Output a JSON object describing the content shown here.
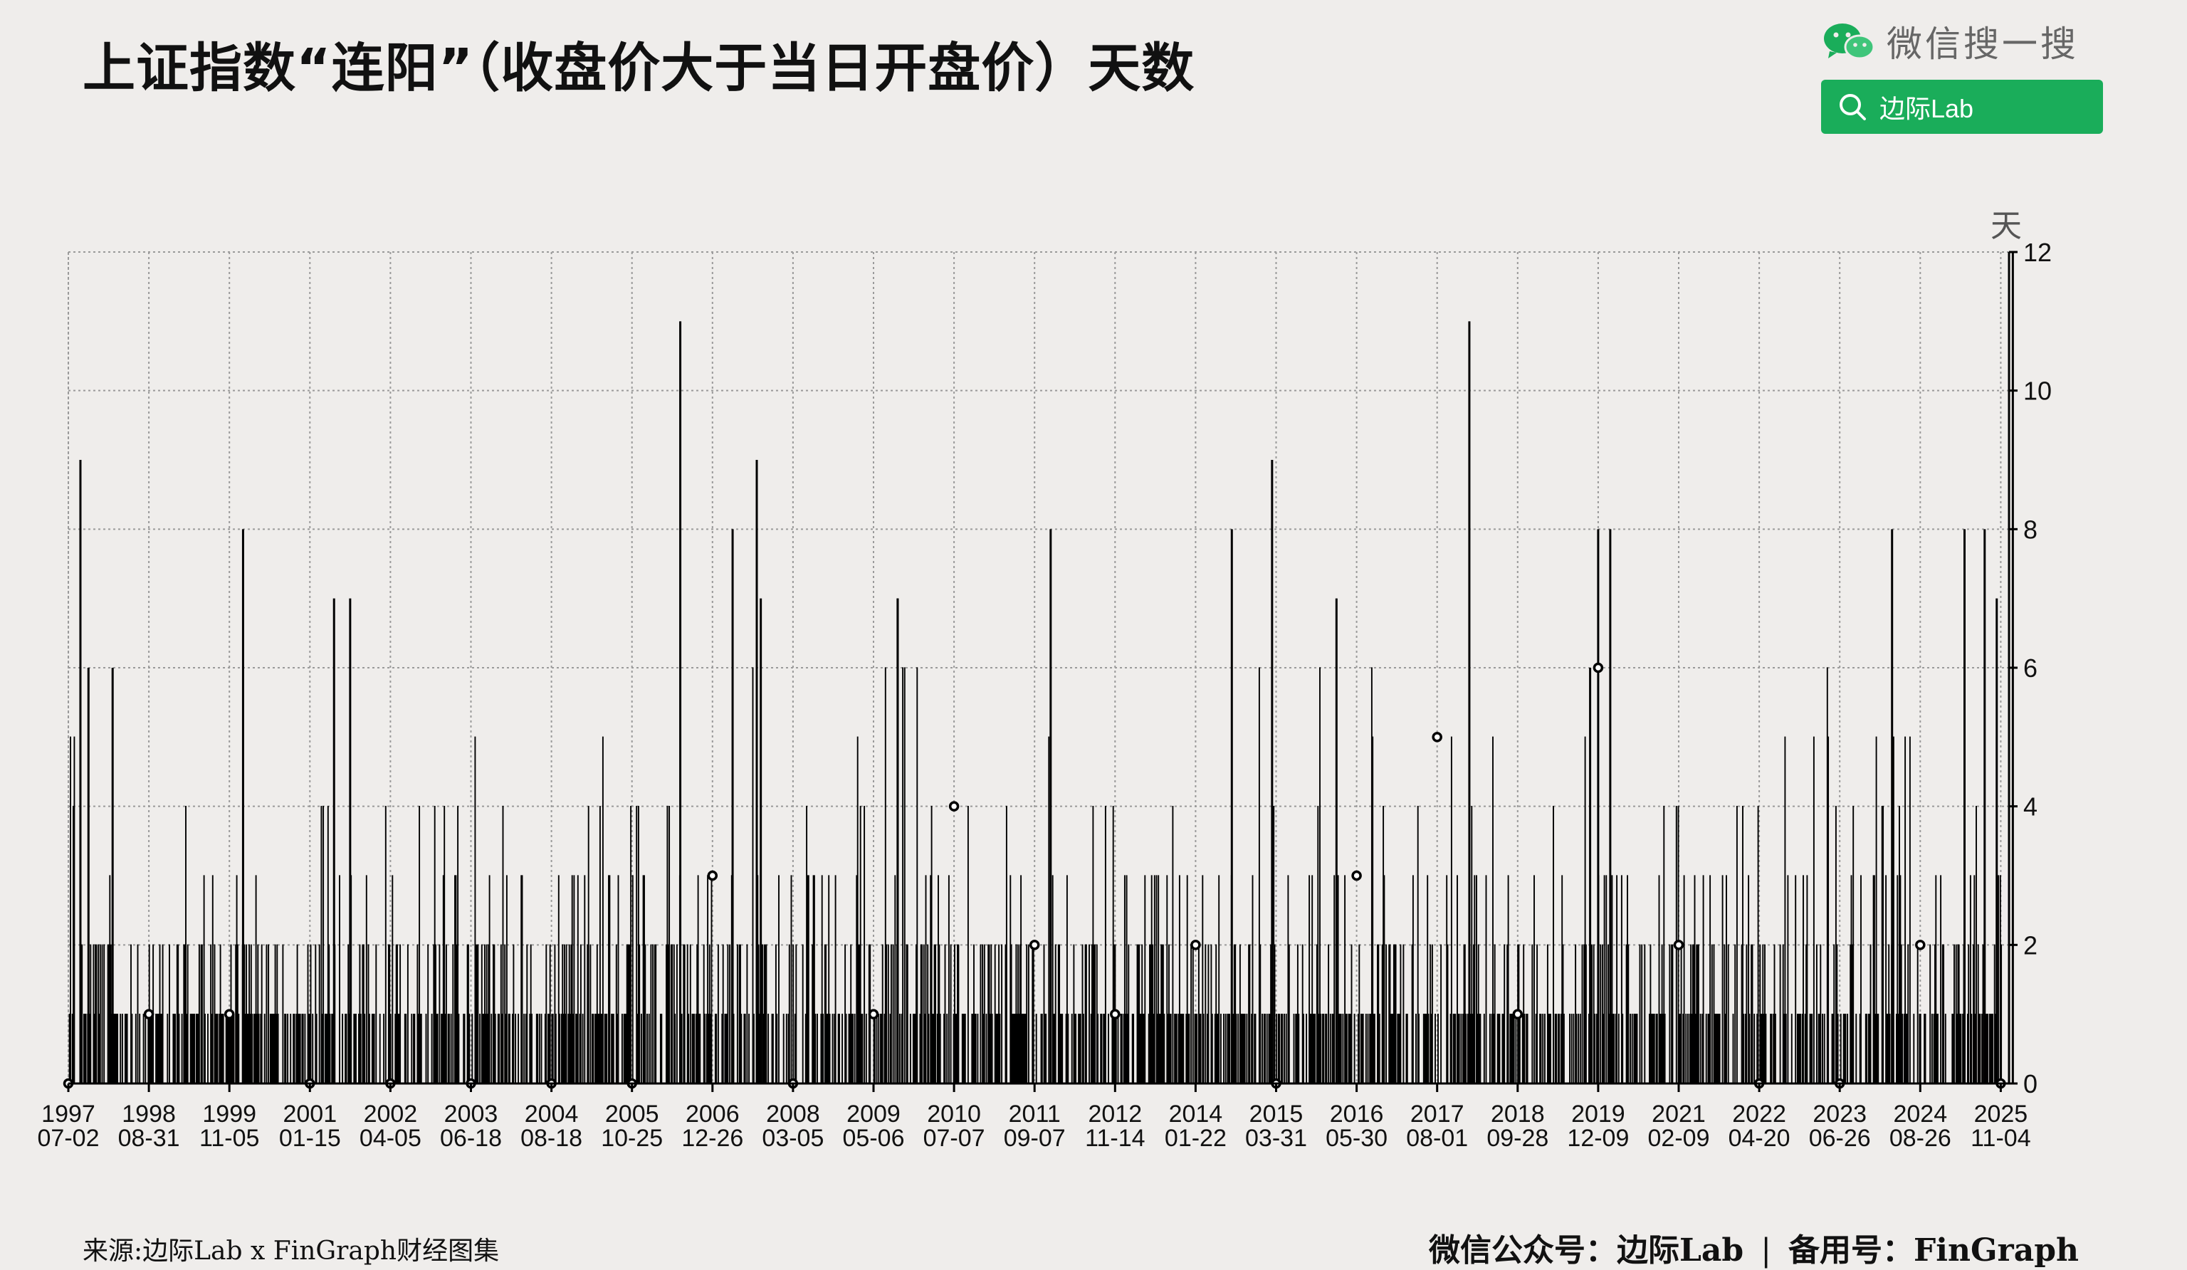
{
  "title": "上证指数“连阳”（收盘价大于当日开盘价）天数",
  "wechat": {
    "label": "微信搜一搜",
    "search_text": "边际Lab",
    "logo_icon": "wechat-logo-icon",
    "search_icon": "magnifier-icon",
    "accent": "#1aad5a"
  },
  "footer": {
    "source": "来源:边际Lab x FinGraph财经图集",
    "account_prefix": "微信公众号：",
    "account": "边际Lab",
    "separator": "|",
    "backup_prefix": "备用号：",
    "backup": "FinGraph"
  },
  "chart_data": {
    "type": "line",
    "ylabel": "天",
    "ylim": [
      0,
      12
    ],
    "y_ticks": [
      0,
      2,
      4,
      6,
      8,
      10,
      12
    ],
    "y_axis_side": "right",
    "grid": true,
    "x_tick_labels": [
      [
        "1997",
        "07-02"
      ],
      [
        "1998",
        "08-31"
      ],
      [
        "1999",
        "11-05"
      ],
      [
        "2001",
        "01-15"
      ],
      [
        "2002",
        "04-05"
      ],
      [
        "2003",
        "06-18"
      ],
      [
        "2004",
        "08-18"
      ],
      [
        "2005",
        "10-25"
      ],
      [
        "2006",
        "12-26"
      ],
      [
        "2008",
        "03-05"
      ],
      [
        "2009",
        "05-06"
      ],
      [
        "2010",
        "07-07"
      ],
      [
        "2011",
        "09-07"
      ],
      [
        "2012",
        "11-14"
      ],
      [
        "2014",
        "01-22"
      ],
      [
        "2015",
        "03-31"
      ],
      [
        "2016",
        "05-30"
      ],
      [
        "2017",
        "08-01"
      ],
      [
        "2018",
        "09-28"
      ],
      [
        "2019",
        "12-09"
      ],
      [
        "2021",
        "02-09"
      ],
      [
        "2022",
        "04-20"
      ],
      [
        "2023",
        "06-26"
      ],
      [
        "2024",
        "08-26"
      ],
      [
        "2025",
        "11-04"
      ]
    ],
    "markers_at_ticks": [
      0,
      1,
      1,
      0,
      0,
      0,
      0,
      0,
      3,
      0,
      1,
      4,
      2,
      1,
      2,
      0,
      3,
      5,
      1,
      6,
      2,
      0,
      0,
      2,
      0
    ],
    "peaks": [
      {
        "pos": 0.15,
        "value": 9
      },
      {
        "pos": 0.25,
        "value": 6
      },
      {
        "pos": 0.55,
        "value": 6
      },
      {
        "pos": 2.17,
        "value": 8
      },
      {
        "pos": 3.3,
        "value": 7
      },
      {
        "pos": 3.5,
        "value": 7
      },
      {
        "pos": 7.6,
        "value": 11
      },
      {
        "pos": 8.25,
        "value": 8
      },
      {
        "pos": 8.55,
        "value": 9
      },
      {
        "pos": 8.6,
        "value": 7
      },
      {
        "pos": 10.3,
        "value": 7
      },
      {
        "pos": 10.3,
        "value": 7
      },
      {
        "pos": 12.2,
        "value": 8
      },
      {
        "pos": 14.45,
        "value": 8
      },
      {
        "pos": 14.95,
        "value": 9
      },
      {
        "pos": 15.75,
        "value": 7
      },
      {
        "pos": 17.4,
        "value": 11
      },
      {
        "pos": 18.9,
        "value": 6
      },
      {
        "pos": 19.0,
        "value": 8
      },
      {
        "pos": 19.15,
        "value": 8
      },
      {
        "pos": 22.65,
        "value": 8
      },
      {
        "pos": 23.55,
        "value": 8
      },
      {
        "pos": 23.8,
        "value": 8
      },
      {
        "pos": 23.95,
        "value": 7
      },
      {
        "pos": 24.15,
        "value": 12
      }
    ]
  }
}
